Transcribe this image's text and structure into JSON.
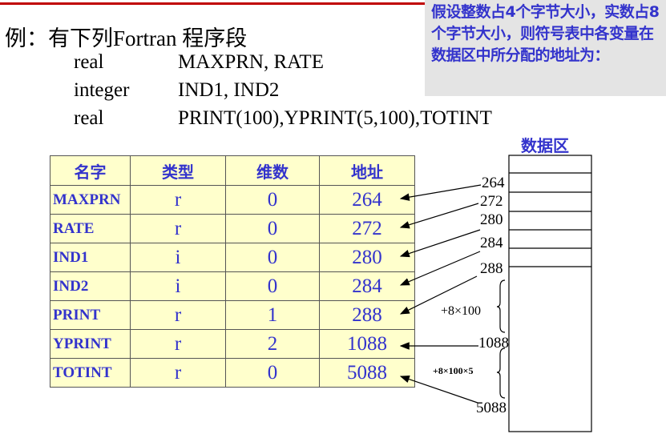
{
  "note": "假设整数占4个字节大小，实数占8个字节大小，则符号表中各变量在数据区中所分配的地址为：",
  "title": "例：有下列Fortran  程序段",
  "code": [
    {
      "type": "real",
      "vars": "MAXPRN, RATE"
    },
    {
      "type": "integer",
      "vars": "IND1, IND2"
    },
    {
      "type": "real",
      "vars": "PRINT(100),YPRINT(5,100),TOTINT"
    }
  ],
  "table": {
    "headers": [
      "名字",
      "类型",
      "维数",
      "地址"
    ],
    "rows": [
      [
        "MAXPRN",
        "r",
        "0",
        "264"
      ],
      [
        "RATE",
        "r",
        "0",
        "272"
      ],
      [
        "IND1",
        "i",
        "0",
        "280"
      ],
      [
        "IND2",
        "i",
        "0",
        "284"
      ],
      [
        "PRINT",
        "r",
        "1",
        "288"
      ],
      [
        "YPRINT",
        "r",
        "2",
        "1088"
      ],
      [
        "TOTINT",
        "r",
        "0",
        "5088"
      ]
    ]
  },
  "data_area": {
    "title": "数据区",
    "addresses": [
      "264",
      "272",
      "280",
      "284",
      "288",
      "1088",
      "5088"
    ],
    "span1": "+8×100",
    "span2": "+8×100×5"
  },
  "colors": {
    "accent": "#3333cc",
    "table_bg": "#ffffcc",
    "rule": "#c00000"
  }
}
